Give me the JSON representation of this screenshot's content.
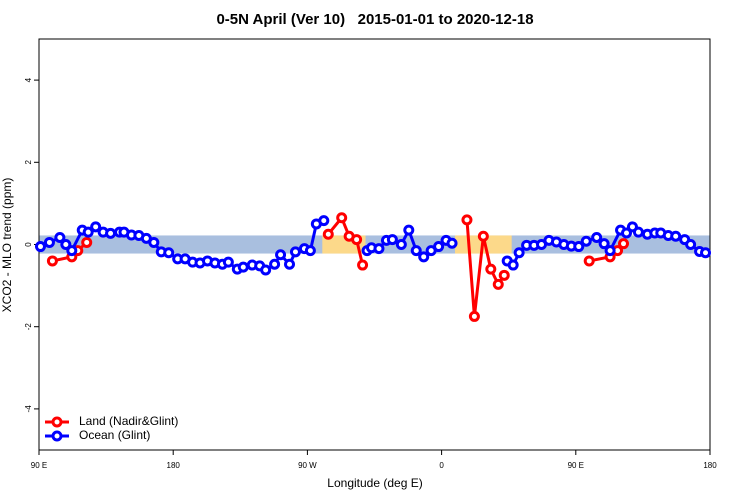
{
  "chart_data": {
    "type": "line",
    "title": "0-5N April (Ver 10)   2015-01-01 to 2020-12-18",
    "x_label": "Longitude (deg E)",
    "y_label": "XCO2 - MLO trend (ppm)",
    "xlim": [
      90,
      540
    ],
    "ylim": [
      -5,
      5
    ],
    "xticks": [
      {
        "value": 90,
        "label": "90 E"
      },
      180,
      {
        "value": 270,
        "label": "90 W"
      },
      {
        "value": 360,
        "label": "0"
      },
      {
        "value": 450,
        "label": "90 E"
      },
      {
        "value": 540,
        "label": "180"
      }
    ],
    "yticks": [
      -4,
      -2,
      0,
      2,
      4
    ],
    "band": [
      -0.22,
      0.22
    ],
    "band_color": "#a9bfdf",
    "land_ranges": [
      [
        280,
        309
      ],
      [
        369,
        407
      ]
    ],
    "land_color": "#fcd98a",
    "legend": "bottom-left",
    "series": [
      {
        "name": "Land (Nadir&Glint)",
        "color": "#ff0000",
        "x": [
          99,
          112,
          116,
          122,
          200,
          284,
          293,
          298,
          303,
          307,
          340,
          377,
          382,
          388,
          393,
          398,
          402,
          430,
          459,
          473,
          478,
          482
        ],
        "values": [
          -0.4,
          -0.3,
          -0.15,
          0.05,
          null,
          0.25,
          0.65,
          0.2,
          0.12,
          -0.5,
          null,
          0.6,
          -1.75,
          0.2,
          -0.6,
          -0.97,
          -0.75,
          null,
          -0.4,
          -0.3,
          -0.15,
          0.02
        ]
      },
      {
        "name": "Ocean (Glint)",
        "color": "#0000ff",
        "x": [
          91,
          97,
          104,
          108,
          112,
          119,
          123,
          128,
          133,
          138,
          144,
          147,
          152,
          157,
          162,
          167,
          172,
          177,
          183,
          188,
          193,
          198,
          203,
          208,
          213,
          217,
          223,
          227,
          233,
          238,
          242,
          248,
          252,
          258,
          262,
          268,
          272,
          276,
          281,
          295,
          310,
          313,
          318,
          323,
          327,
          333,
          338,
          343,
          348,
          353,
          358,
          363,
          367,
          385,
          404,
          408,
          412,
          417,
          422,
          427,
          432,
          437,
          442,
          447,
          452,
          457,
          464,
          469,
          473,
          480,
          484,
          488,
          492,
          498,
          503,
          507,
          512,
          517,
          523,
          527,
          533,
          537
        ],
        "values": [
          -0.05,
          0.05,
          0.17,
          0.0,
          -0.15,
          0.35,
          0.3,
          0.43,
          0.3,
          0.27,
          0.3,
          0.3,
          0.23,
          0.22,
          0.15,
          0.05,
          -0.18,
          -0.2,
          -0.35,
          -0.35,
          -0.43,
          -0.45,
          -0.4,
          -0.45,
          -0.48,
          -0.43,
          -0.6,
          -0.55,
          -0.5,
          -0.52,
          -0.62,
          -0.48,
          -0.25,
          -0.48,
          -0.18,
          -0.1,
          -0.15,
          0.5,
          0.58,
          null,
          -0.15,
          -0.08,
          -0.1,
          0.1,
          0.12,
          0.0,
          0.35,
          -0.15,
          -0.3,
          -0.15,
          -0.05,
          0.1,
          0.03,
          null,
          -0.4,
          -0.5,
          -0.2,
          -0.02,
          -0.02,
          0.0,
          0.1,
          0.06,
          0.0,
          -0.04,
          -0.05,
          0.08,
          0.17,
          0.02,
          -0.15,
          0.35,
          0.28,
          0.43,
          0.3,
          0.25,
          0.28,
          0.28,
          0.22,
          0.2,
          0.12,
          0.0,
          -0.17,
          -0.2
        ]
      }
    ]
  }
}
